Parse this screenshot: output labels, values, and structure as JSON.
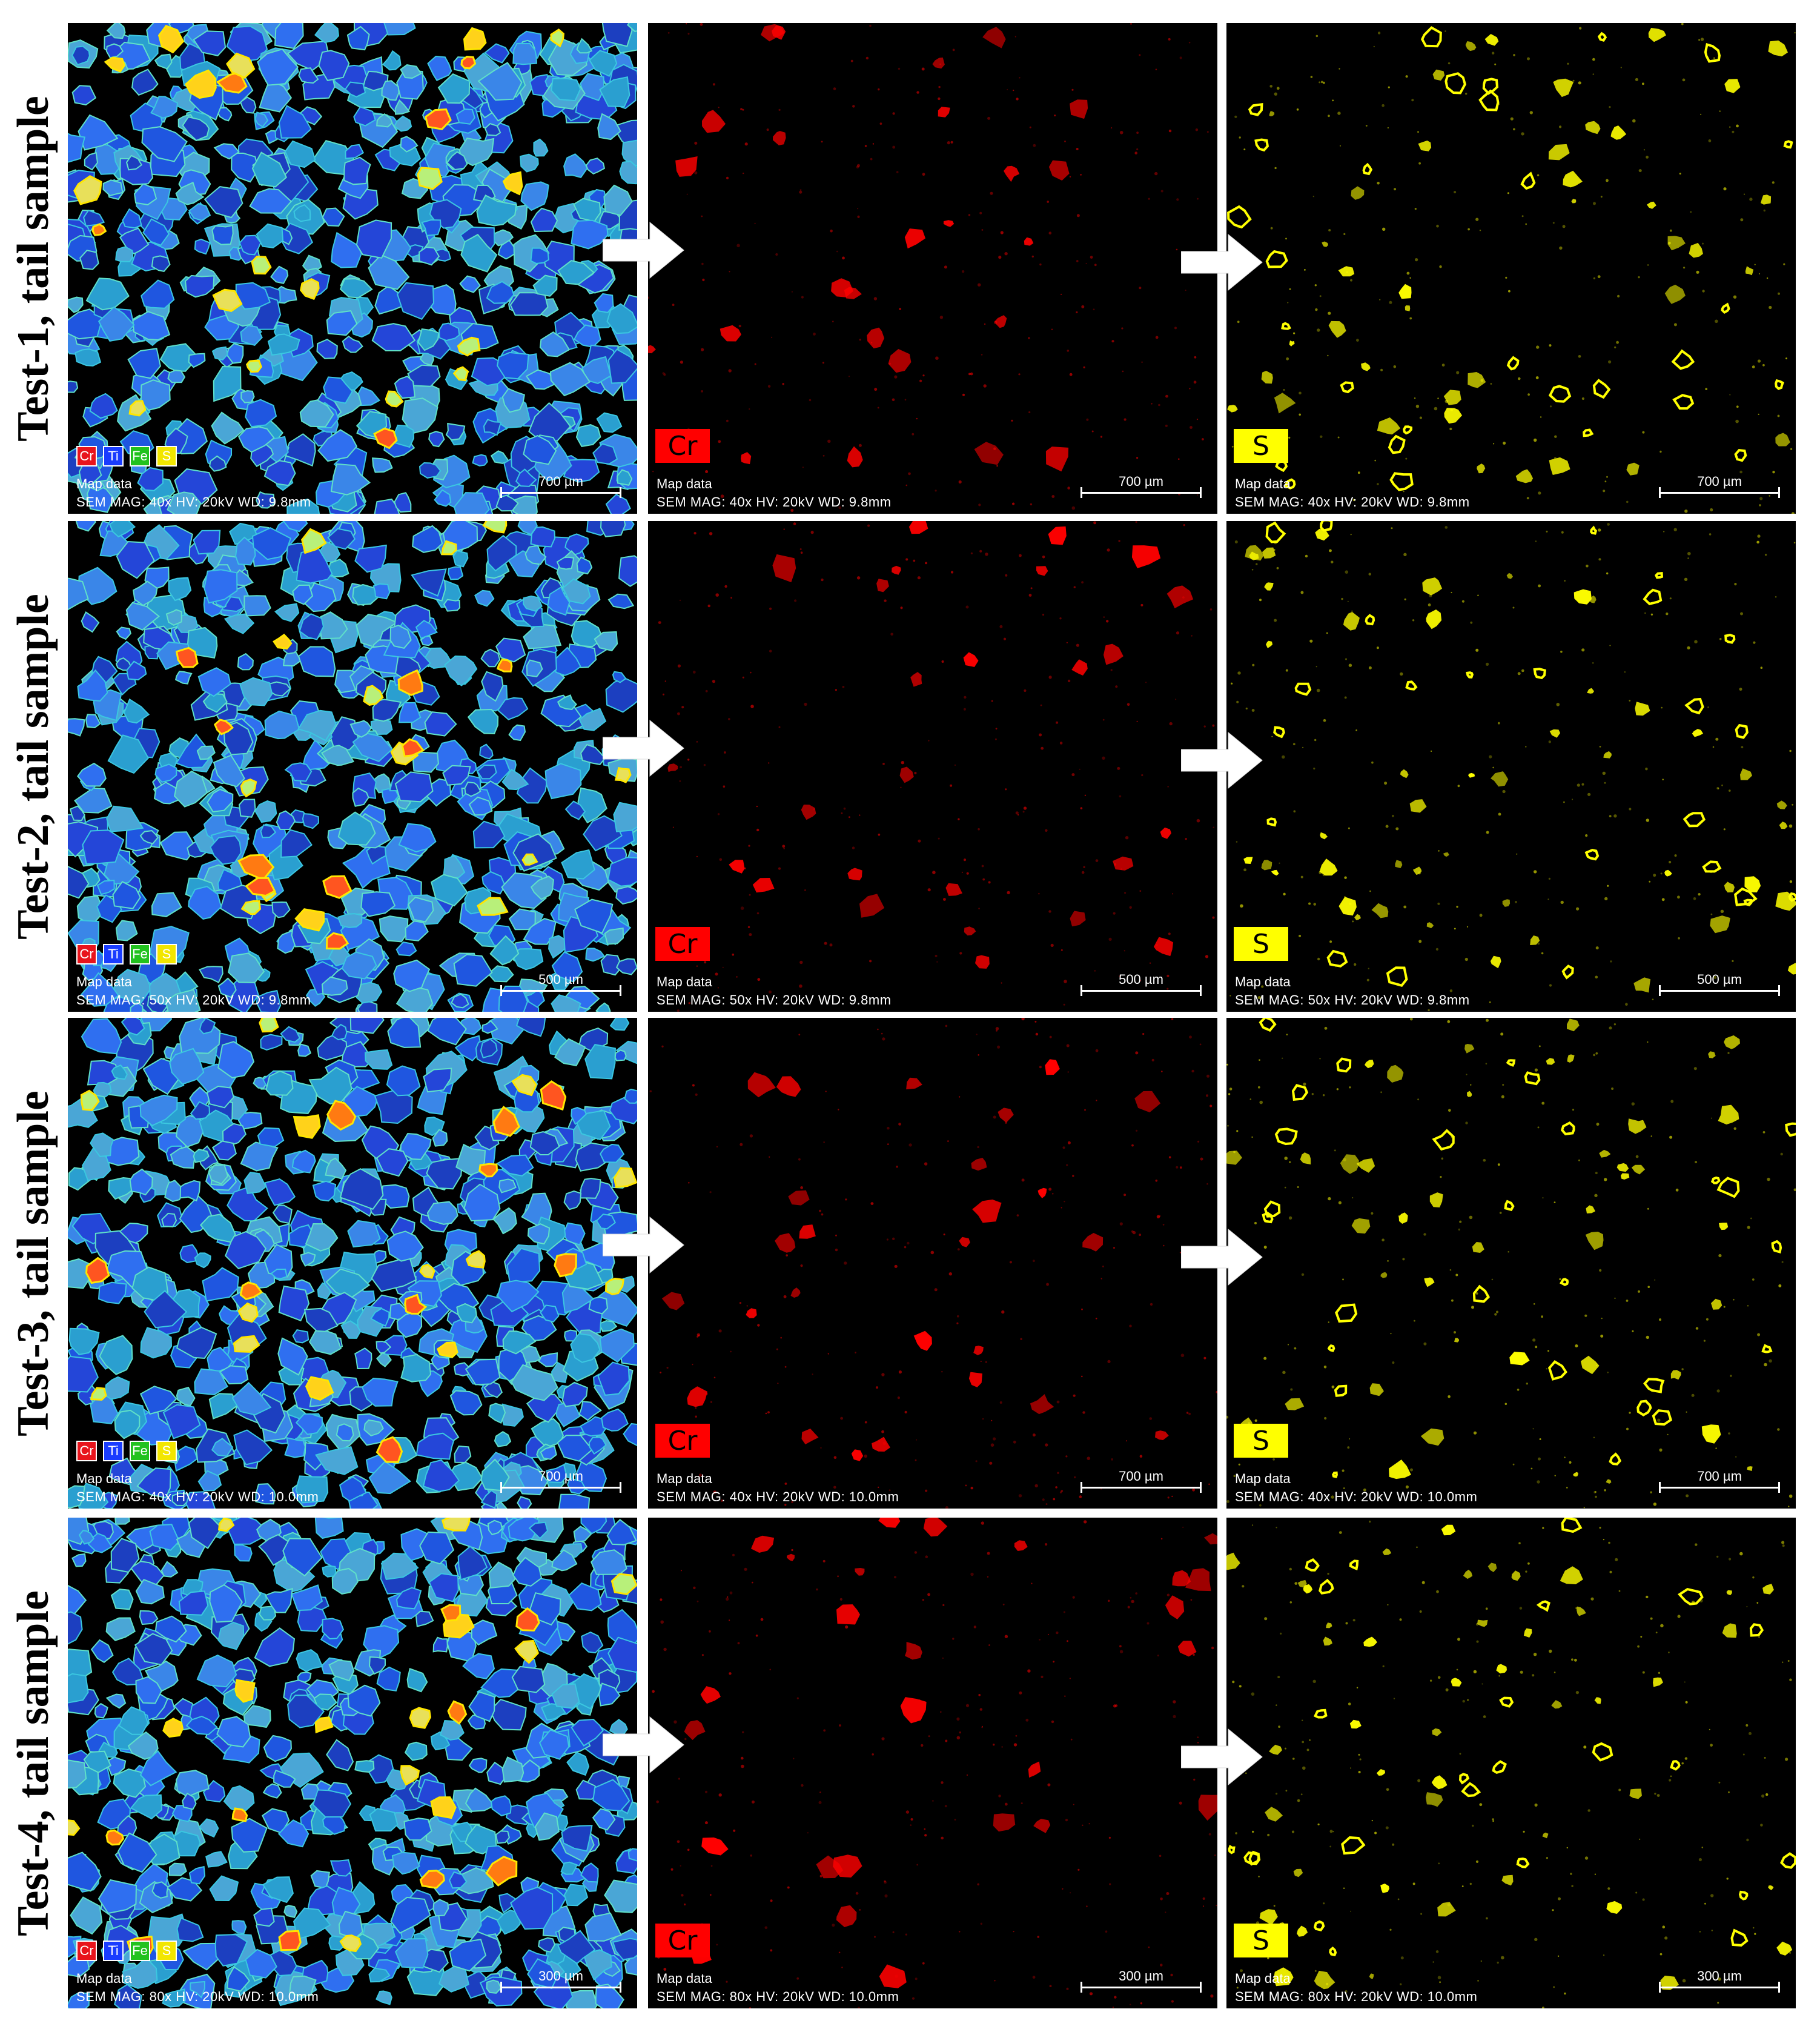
{
  "rows": [
    {
      "label": "Test-1, tail sample",
      "sem": "SEM  MAG: 40x  HV: 20kV  WD: 9.8mm",
      "scale": "700 µm"
    },
    {
      "label": "Test-2, tail sample",
      "sem": "SEM  MAG: 50x  HV: 20kV  WD: 9.8mm",
      "scale": "500 µm"
    },
    {
      "label": "Test-3, tail sample",
      "sem": "SEM  MAG: 40x  HV: 20kV  WD: 10.0mm",
      "scale": "700 µm"
    },
    {
      "label": "Test-4, tail sample",
      "sem": "SEM  MAG: 80x  HV: 20kV  WD: 10.0mm",
      "scale": "300 µm"
    }
  ],
  "map_title": "Map data",
  "legend": [
    {
      "symbol": "Cr",
      "color": "#e8141c"
    },
    {
      "symbol": "Ti",
      "color": "#1a3cff"
    },
    {
      "symbol": "Fe",
      "color": "#22c21e"
    },
    {
      "symbol": "S",
      "color": "#f2e600"
    }
  ],
  "element_maps": [
    {
      "symbol": "Cr",
      "color": "#ff0000",
      "text_color": "#000000"
    },
    {
      "symbol": "S",
      "color": "#ffff00",
      "text_color": "#000000"
    }
  ],
  "colors": {
    "composite_particle": "#1f56e0",
    "composite_alt": "#2a9fd0",
    "background": "#000000"
  }
}
